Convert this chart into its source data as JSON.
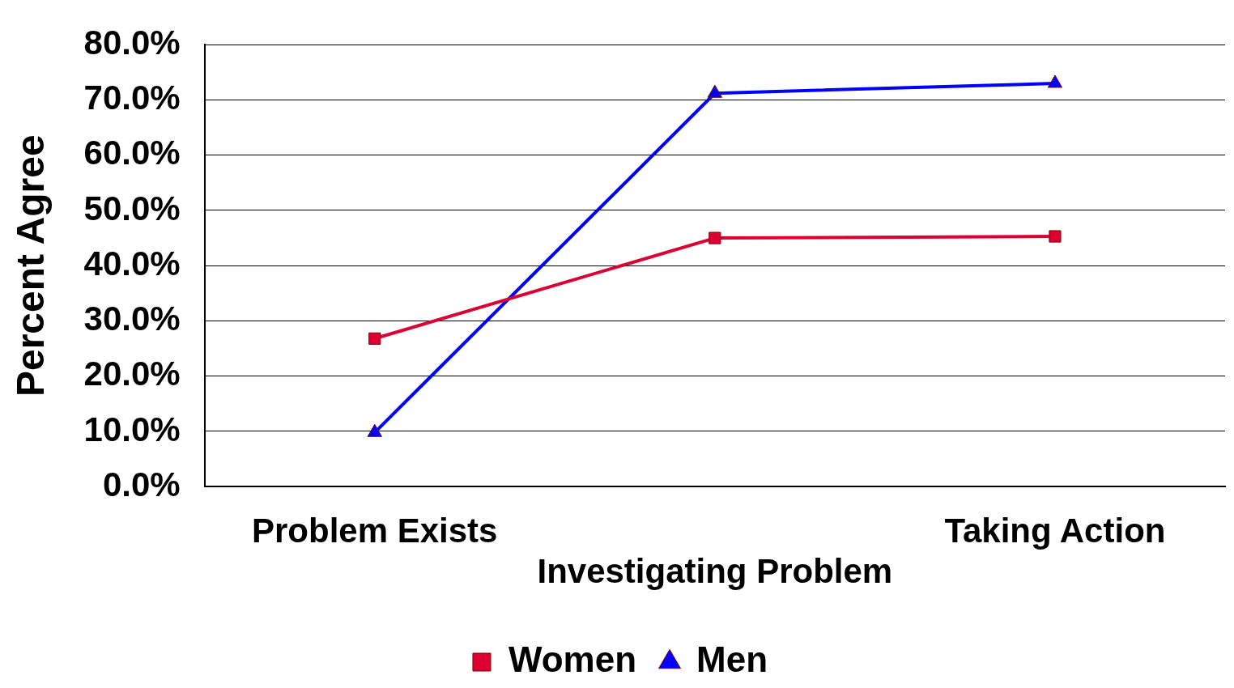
{
  "chart_data": {
    "type": "line",
    "ylabel": "Percent Agree",
    "categories": [
      "Problem Exists",
      "Investigating Problem",
      "Taking Action"
    ],
    "series": [
      {
        "name": "Women",
        "color": "#dc0032",
        "marker": "square",
        "values": [
          26.8,
          45.0,
          45.3
        ]
      },
      {
        "name": "Men",
        "color": "#0000ff",
        "marker": "triangle",
        "values": [
          9.8,
          71.2,
          73.0
        ]
      }
    ],
    "ylim": [
      0,
      80
    ],
    "yticks": [
      {
        "value": 0,
        "label": "0.0%"
      },
      {
        "value": 10,
        "label": "10.0%"
      },
      {
        "value": 20,
        "label": "20.0%"
      },
      {
        "value": 30,
        "label": "30.0%"
      },
      {
        "value": 40,
        "label": "40.0%"
      },
      {
        "value": 50,
        "label": "50.0%"
      },
      {
        "value": 60,
        "label": "60.0%"
      },
      {
        "value": 70,
        "label": "70.0%"
      },
      {
        "value": 80,
        "label": "80.0%"
      }
    ],
    "grid": "y",
    "legend": "bottom"
  }
}
